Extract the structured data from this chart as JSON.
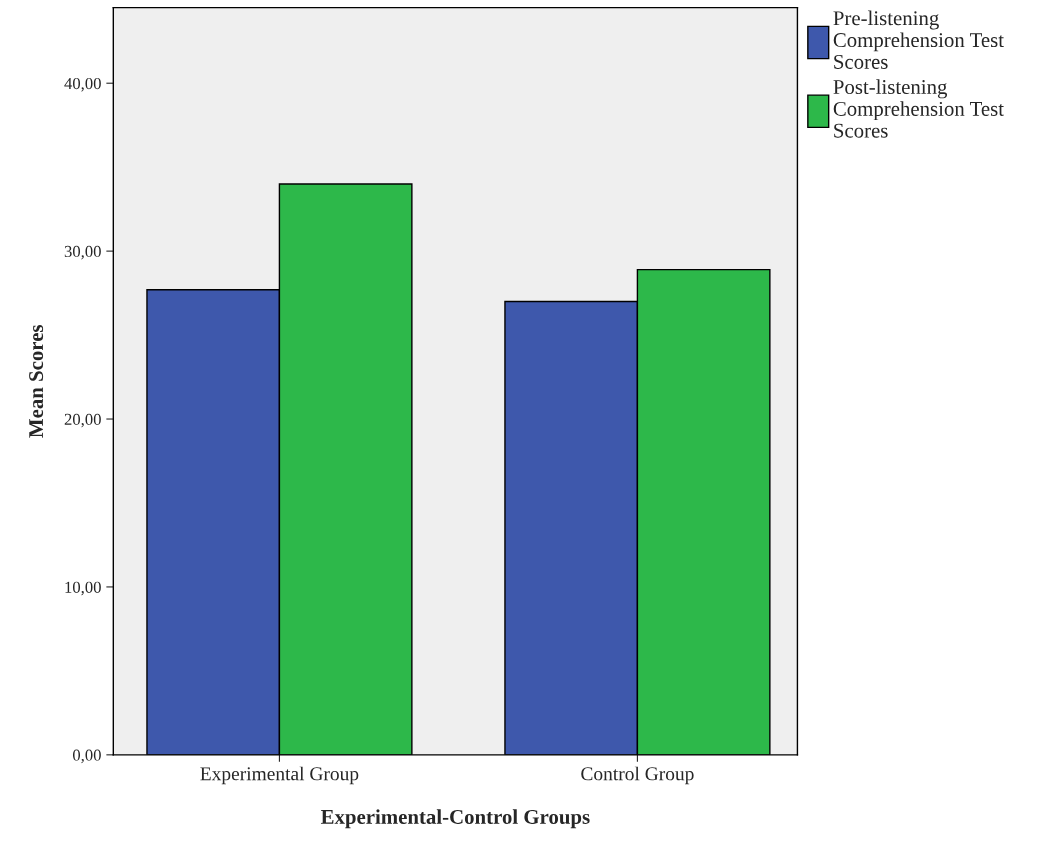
{
  "chart_data": {
    "type": "bar",
    "xlabel": "Experimental-Control Groups",
    "ylabel": "Mean Scores",
    "categories": [
      "Experimental Group",
      "Control Group"
    ],
    "series": [
      {
        "name": "Pre-listening\nComprehension Test\nScores",
        "color": "#3e58ac",
        "values": [
          27.7,
          27.0
        ]
      },
      {
        "name": "Post-listening\nComprehension Test\nScores",
        "color": "#2db84a",
        "values": [
          34.0,
          28.9
        ]
      }
    ],
    "ylim": [
      0,
      44.5
    ],
    "yticks": [
      {
        "value": 0,
        "label": "0,00"
      },
      {
        "value": 10,
        "label": "10,00"
      },
      {
        "value": 20,
        "label": "20,00"
      },
      {
        "value": 30,
        "label": "30,00"
      },
      {
        "value": 40,
        "label": "40,00"
      }
    ],
    "grid": false,
    "legend": "top right"
  }
}
